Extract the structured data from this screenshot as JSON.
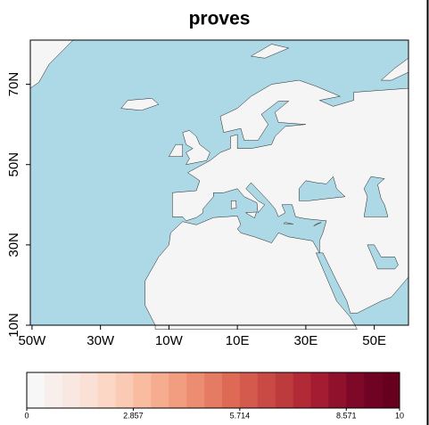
{
  "title": "proves",
  "map": {
    "ocean_color": "#add8e6",
    "land_color": "#f5f5f5",
    "xlim": [
      -50.5,
      60
    ],
    "ylim": [
      10,
      81
    ],
    "x_ticks": [
      {
        "value": -50,
        "label": "50W"
      },
      {
        "value": -30,
        "label": "30W"
      },
      {
        "value": -10,
        "label": "10W"
      },
      {
        "value": 10,
        "label": "10E"
      },
      {
        "value": 30,
        "label": "30E"
      },
      {
        "value": 50,
        "label": "50E"
      }
    ],
    "y_ticks": [
      {
        "value": 10,
        "label": "10N"
      },
      {
        "value": 30,
        "label": "30N"
      },
      {
        "value": 50,
        "label": "50N"
      },
      {
        "value": 70,
        "label": "70N"
      }
    ]
  },
  "colorbar": {
    "lim": [
      0,
      10
    ],
    "ticks": [
      0,
      2.857,
      5.714,
      8.571,
      10
    ],
    "colors": [
      "#f7f7f7",
      "#f8efec",
      "#f9e8e1",
      "#fbe0d5",
      "#fcd7c6",
      "#fbcab4",
      "#f9bca1",
      "#f6ad8f",
      "#f29d80",
      "#ec8c71",
      "#e57b63",
      "#de6a56",
      "#d45a4d",
      "#c94a44",
      "#bd3a3d",
      "#b22a36",
      "#a31c31",
      "#8f112c",
      "#7d0827",
      "#700324",
      "#67001f"
    ]
  }
}
